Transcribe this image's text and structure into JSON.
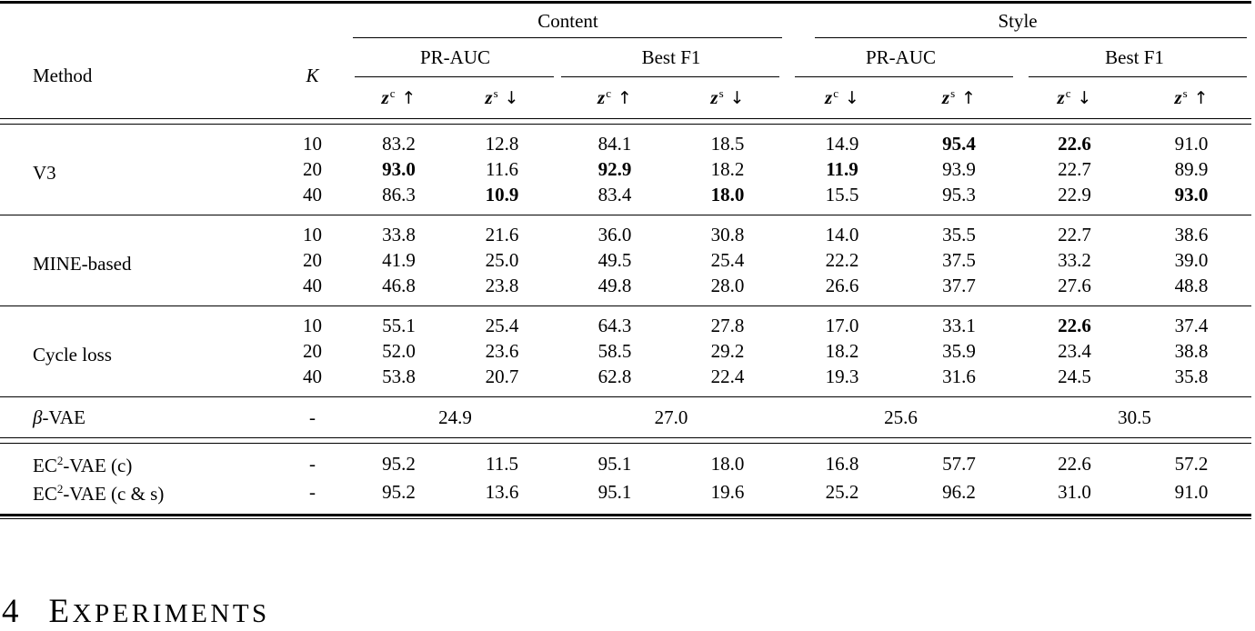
{
  "table": {
    "header": {
      "method": "Method",
      "k": "K",
      "groups": [
        {
          "label": "Content",
          "subs": [
            {
              "label": "PR-AUC",
              "cols": [
                {
                  "sym": "z",
                  "sup": "c",
                  "arrow": "↑"
                },
                {
                  "sym": "z",
                  "sup": "s",
                  "arrow": "↓"
                }
              ]
            },
            {
              "label": "Best F1",
              "cols": [
                {
                  "sym": "z",
                  "sup": "c",
                  "arrow": "↑"
                },
                {
                  "sym": "z",
                  "sup": "s",
                  "arrow": "↓"
                }
              ]
            }
          ]
        },
        {
          "label": "Style",
          "subs": [
            {
              "label": "PR-AUC",
              "cols": [
                {
                  "sym": "z",
                  "sup": "c",
                  "arrow": "↓"
                },
                {
                  "sym": "z",
                  "sup": "s",
                  "arrow": "↑"
                }
              ]
            },
            {
              "label": "Best F1",
              "cols": [
                {
                  "sym": "z",
                  "sup": "c",
                  "arrow": "↓"
                },
                {
                  "sym": "z",
                  "sup": "s",
                  "arrow": "↑"
                }
              ]
            }
          ]
        }
      ]
    },
    "body": {
      "groups": [
        {
          "method": "V3",
          "rows": [
            {
              "k": "10",
              "values": [
                {
                  "v": "83.2"
                },
                {
                  "v": "12.8"
                },
                {
                  "v": "84.1"
                },
                {
                  "v": "18.5"
                },
                {
                  "v": "14.9"
                },
                {
                  "v": "95.4",
                  "b": true
                },
                {
                  "v": "22.6",
                  "b": true
                },
                {
                  "v": "91.0"
                }
              ]
            },
            {
              "k": "20",
              "values": [
                {
                  "v": "93.0",
                  "b": true
                },
                {
                  "v": "11.6"
                },
                {
                  "v": "92.9",
                  "b": true
                },
                {
                  "v": "18.2"
                },
                {
                  "v": "11.9",
                  "b": true
                },
                {
                  "v": "93.9"
                },
                {
                  "v": "22.7"
                },
                {
                  "v": "89.9"
                }
              ]
            },
            {
              "k": "40",
              "values": [
                {
                  "v": "86.3"
                },
                {
                  "v": "10.9",
                  "b": true
                },
                {
                  "v": "83.4"
                },
                {
                  "v": "18.0",
                  "b": true
                },
                {
                  "v": "15.5"
                },
                {
                  "v": "95.3"
                },
                {
                  "v": "22.9"
                },
                {
                  "v": "93.0",
                  "b": true
                }
              ]
            }
          ]
        },
        {
          "method": "MINE-based",
          "rows": [
            {
              "k": "10",
              "values": [
                {
                  "v": "33.8"
                },
                {
                  "v": "21.6"
                },
                {
                  "v": "36.0"
                },
                {
                  "v": "30.8"
                },
                {
                  "v": "14.0"
                },
                {
                  "v": "35.5"
                },
                {
                  "v": "22.7"
                },
                {
                  "v": "38.6"
                }
              ]
            },
            {
              "k": "20",
              "values": [
                {
                  "v": "41.9"
                },
                {
                  "v": "25.0"
                },
                {
                  "v": "49.5"
                },
                {
                  "v": "25.4"
                },
                {
                  "v": "22.2"
                },
                {
                  "v": "37.5"
                },
                {
                  "v": "33.2"
                },
                {
                  "v": "39.0"
                }
              ]
            },
            {
              "k": "40",
              "values": [
                {
                  "v": "46.8"
                },
                {
                  "v": "23.8"
                },
                {
                  "v": "49.8"
                },
                {
                  "v": "28.0"
                },
                {
                  "v": "26.6"
                },
                {
                  "v": "37.7"
                },
                {
                  "v": "27.6"
                },
                {
                  "v": "48.8"
                }
              ]
            }
          ]
        },
        {
          "method": "Cycle loss",
          "rows": [
            {
              "k": "10",
              "values": [
                {
                  "v": "55.1"
                },
                {
                  "v": "25.4"
                },
                {
                  "v": "64.3"
                },
                {
                  "v": "27.8"
                },
                {
                  "v": "17.0"
                },
                {
                  "v": "33.1"
                },
                {
                  "v": "22.6",
                  "b": true
                },
                {
                  "v": "37.4"
                }
              ]
            },
            {
              "k": "20",
              "values": [
                {
                  "v": "52.0"
                },
                {
                  "v": "23.6"
                },
                {
                  "v": "58.5"
                },
                {
                  "v": "29.2"
                },
                {
                  "v": "18.2"
                },
                {
                  "v": "35.9"
                },
                {
                  "v": "23.4"
                },
                {
                  "v": "38.8"
                }
              ]
            },
            {
              "k": "40",
              "values": [
                {
                  "v": "53.8"
                },
                {
                  "v": "20.7"
                },
                {
                  "v": "62.8"
                },
                {
                  "v": "22.4"
                },
                {
                  "v": "19.3"
                },
                {
                  "v": "31.6"
                },
                {
                  "v": "24.5"
                },
                {
                  "v": "35.8"
                }
              ]
            }
          ]
        }
      ],
      "beta_row": {
        "method_italic": "β",
        "method_rest": "-VAE",
        "k": "-",
        "spans": [
          "24.9",
          "27.0",
          "25.6",
          "30.5"
        ]
      },
      "ec2_rows": [
        {
          "method_prefix": "EC",
          "method_sup": "2",
          "method_rest": "-VAE (c)",
          "k": "-",
          "values": [
            {
              "v": "95.2"
            },
            {
              "v": "11.5"
            },
            {
              "v": "95.1"
            },
            {
              "v": "18.0"
            },
            {
              "v": "16.8"
            },
            {
              "v": "57.7"
            },
            {
              "v": "22.6"
            },
            {
              "v": "57.2"
            }
          ]
        },
        {
          "method_prefix": "EC",
          "method_sup": "2",
          "method_rest": "-VAE (c & s)",
          "k": "-",
          "values": [
            {
              "v": "95.2"
            },
            {
              "v": "13.6"
            },
            {
              "v": "95.1"
            },
            {
              "v": "19.6"
            },
            {
              "v": "25.2"
            },
            {
              "v": "96.2"
            },
            {
              "v": "31.0"
            },
            {
              "v": "91.0"
            }
          ]
        }
      ]
    }
  },
  "section": {
    "number": "4",
    "title_initial": "E",
    "title_rest": "XPERIMENTS"
  },
  "colors": {
    "text": "#000000",
    "background": "#ffffff",
    "rule": "#000000"
  }
}
